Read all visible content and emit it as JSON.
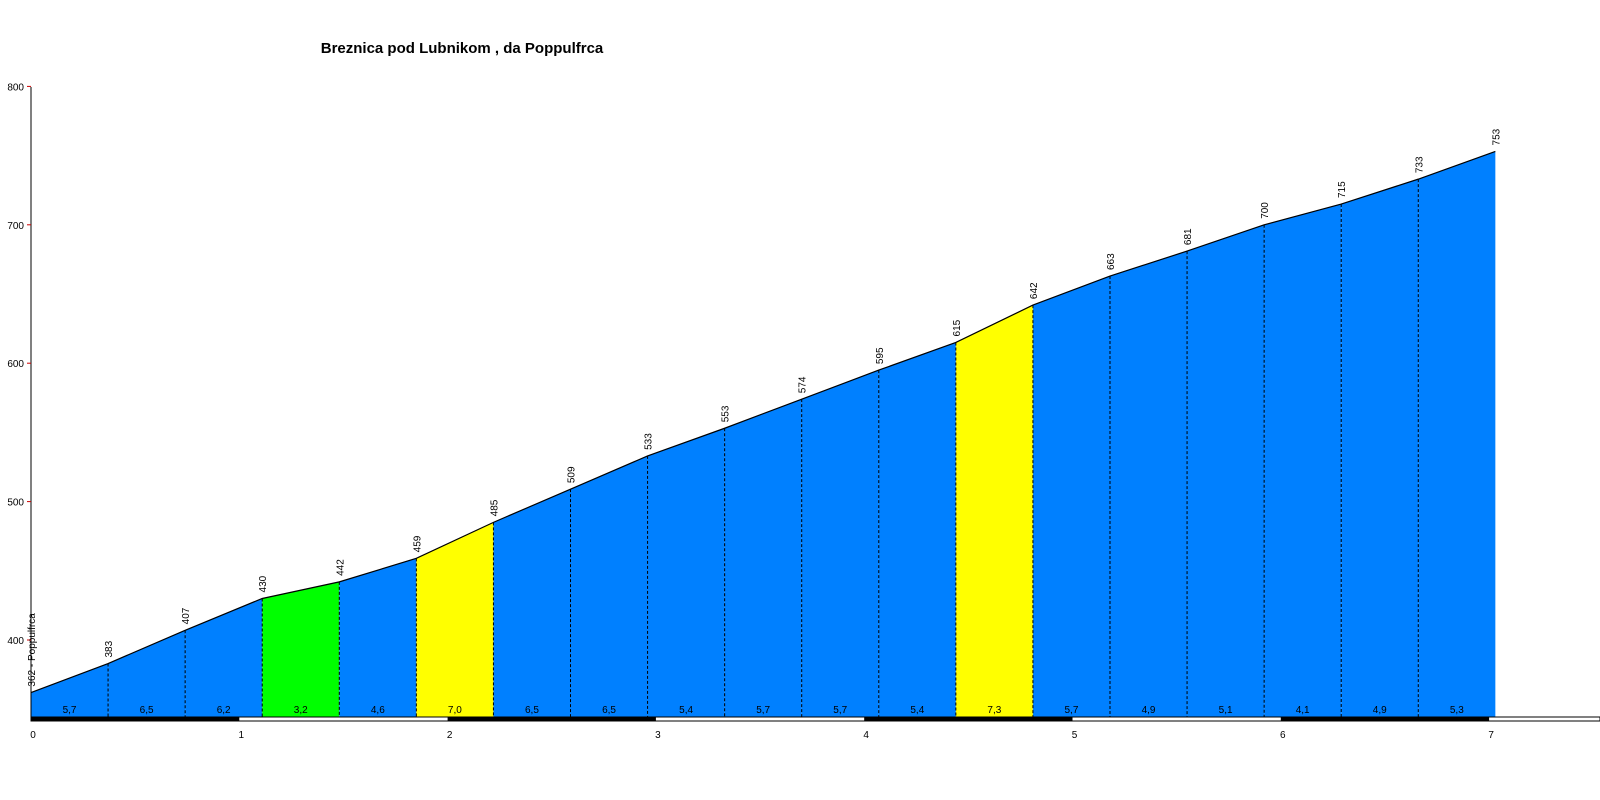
{
  "chart_data": {
    "type": "area",
    "title": "Breznica pod Lubnikom , da Poppulfrca",
    "xlabel": "",
    "ylabel": "",
    "xlim": [
      0,
      7.5
    ],
    "ylim": [
      345,
      800
    ],
    "x_ticks": [
      "0",
      "1",
      "2",
      "3",
      "4",
      "5",
      "6",
      "7"
    ],
    "y_ticks": [
      "400",
      "500",
      "600",
      "700",
      "800"
    ],
    "start_label": "362 - Poppulfrca",
    "distances_km": [
      0,
      0.37,
      0.74,
      1.11,
      1.48,
      1.85,
      2.22,
      2.59,
      2.96,
      3.33,
      3.7,
      4.07,
      4.44,
      4.81,
      5.18,
      5.55,
      5.92,
      6.29,
      6.66,
      7.03
    ],
    "elevations": [
      362,
      383,
      407,
      430,
      442,
      459,
      485,
      509,
      533,
      553,
      574,
      595,
      615,
      642,
      663,
      681,
      700,
      715,
      733,
      753
    ],
    "elevation_labels": [
      "362",
      "383",
      "407",
      "430",
      "442",
      "459",
      "485",
      "509",
      "533",
      "553",
      "574",
      "595",
      "615",
      "642",
      "663",
      "681",
      "700",
      "715",
      "733",
      "753"
    ],
    "gradients": [
      "5,7",
      "6,5",
      "6,2",
      "3,2",
      "4,6",
      "7,0",
      "6,5",
      "6,5",
      "5,4",
      "5,7",
      "5,7",
      "5,4",
      "7,3",
      "5,7",
      "4,9",
      "5,1",
      "4,1",
      "4,9",
      "5,3"
    ],
    "segment_colors": [
      "#0080ff",
      "#0080ff",
      "#0080ff",
      "#00ff00",
      "#0080ff",
      "#ffff00",
      "#0080ff",
      "#0080ff",
      "#0080ff",
      "#0080ff",
      "#0080ff",
      "#0080ff",
      "#ffff00",
      "#0080ff",
      "#0080ff",
      "#0080ff",
      "#0080ff",
      "#0080ff",
      "#0080ff"
    ]
  }
}
